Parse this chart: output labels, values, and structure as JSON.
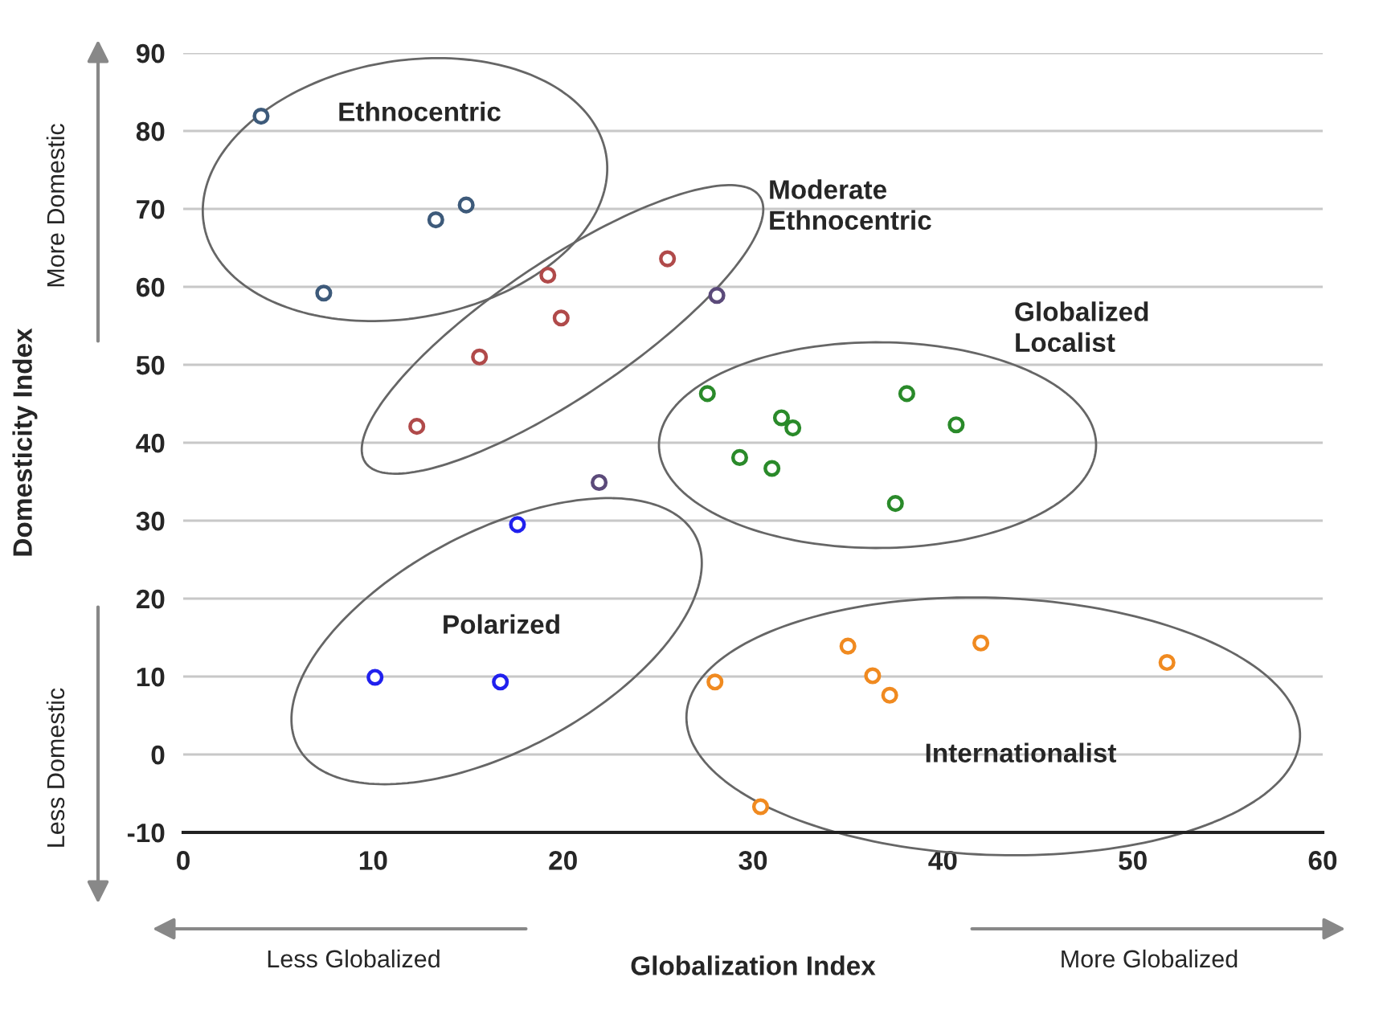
{
  "chart_data": {
    "type": "scatter",
    "xlabel": "Globalization Index",
    "ylabel": "Domesticity Index",
    "xlim": [
      0,
      60
    ],
    "xticks": [
      0,
      10,
      20,
      30,
      40,
      50,
      60
    ],
    "ylim": [
      -10,
      90
    ],
    "yticks": [
      -10,
      0,
      10,
      20,
      30,
      40,
      50,
      60,
      70,
      80,
      90
    ],
    "grid": "y",
    "marker": "circle",
    "series": [
      {
        "color": "#3d5a7a",
        "x": [
          4.1,
          7.4,
          13.3,
          14.9
        ],
        "values": [
          81.9,
          59.2,
          68.6,
          70.5
        ]
      },
      {
        "color": "#b04a4a",
        "x": [
          25.5,
          19.2,
          19.9,
          15.6,
          12.3
        ],
        "values": [
          63.6,
          61.5,
          56.0,
          51.0,
          42.1
        ]
      },
      {
        "color": "#5b4a7a",
        "x": [
          28.1,
          21.9
        ],
        "values": [
          58.9,
          34.9
        ]
      },
      {
        "color": "#2a8a2a",
        "x": [
          27.6,
          31.5,
          32.1,
          29.3,
          31.0,
          38.1,
          40.7,
          37.5
        ],
        "values": [
          46.3,
          43.2,
          41.9,
          38.1,
          36.7,
          46.3,
          42.3,
          32.2
        ]
      },
      {
        "color": "#2020ee",
        "x": [
          17.6,
          10.1,
          16.7
        ],
        "values": [
          29.5,
          9.9,
          9.3
        ]
      },
      {
        "color": "#f08a20",
        "x": [
          28.0,
          30.4,
          35.0,
          36.3,
          37.2,
          42.0,
          51.8
        ],
        "values": [
          9.3,
          -6.7,
          13.9,
          10.1,
          7.6,
          14.3,
          11.8
        ]
      }
    ],
    "annotations": [
      "Ethnocentric",
      "Moderate\nEthnocentric",
      "Globalized\nLocalist",
      "Polarized",
      "Internationalist",
      "More Domestic",
      "Less Domestic",
      "Less Globalized",
      "More Globalized"
    ]
  }
}
